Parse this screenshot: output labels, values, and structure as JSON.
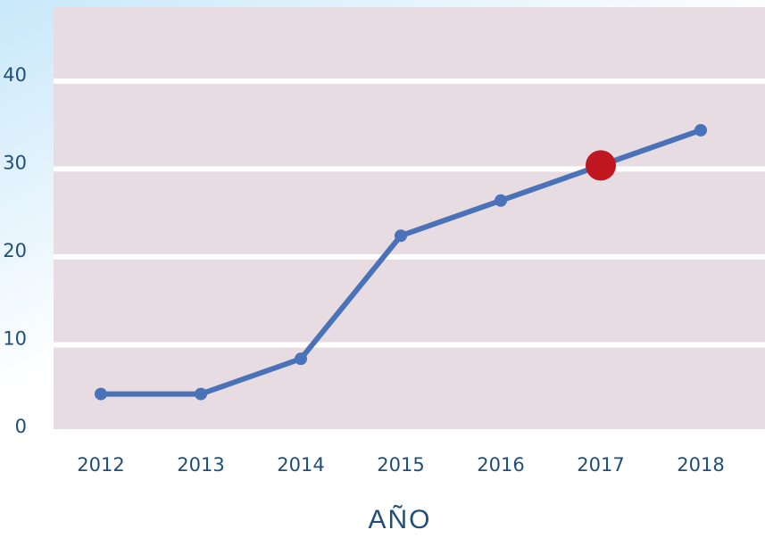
{
  "chart_data": {
    "type": "line",
    "categories": [
      "2012",
      "2013",
      "2014",
      "2015",
      "2016",
      "2017",
      "2018"
    ],
    "values": [
      4,
      4,
      8,
      22,
      26,
      30,
      34
    ],
    "color": "#4a72b8",
    "highlight_index": 5,
    "highlight_color": "#c0161f",
    "xlabel": "AÑO",
    "ylim": [
      0,
      48
    ],
    "yticks": [
      0,
      10,
      20,
      30,
      40
    ],
    "grid": true
  }
}
